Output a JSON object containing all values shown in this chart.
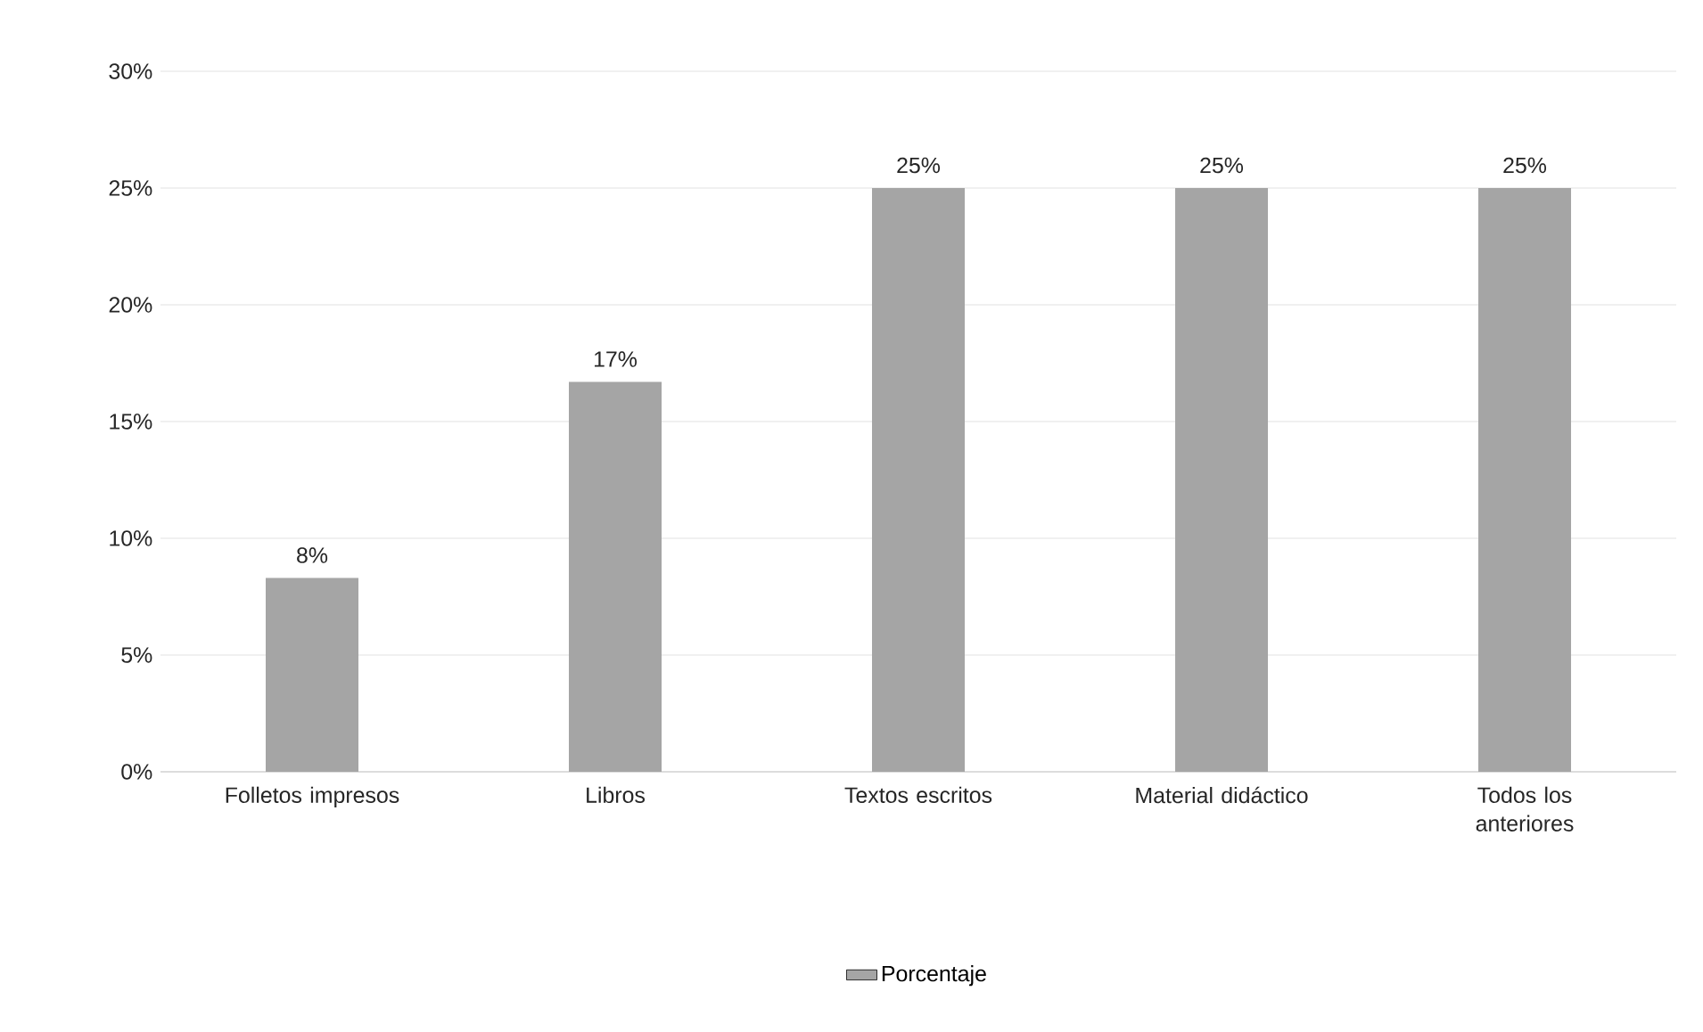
{
  "chart_data": {
    "type": "bar",
    "categories": [
      "Folletos impresos",
      "Libros",
      "Textos escritos",
      "Material didáctico",
      "Todos los anteriores"
    ],
    "series": [
      {
        "name": "Porcentaje",
        "color": "#a5a5a5",
        "values": [
          8.3,
          16.7,
          25,
          25,
          25
        ],
        "value_labels": [
          "8%",
          "17%",
          "25%",
          "25%",
          "25%"
        ]
      }
    ],
    "ylim": [
      0,
      30
    ],
    "yticks": [
      {
        "value": 0,
        "label": "0%"
      },
      {
        "value": 5,
        "label": "5%"
      },
      {
        "value": 10,
        "label": "10%"
      },
      {
        "value": 15,
        "label": "15%"
      },
      {
        "value": 20,
        "label": "20%"
      },
      {
        "value": 25,
        "label": "25%"
      },
      {
        "value": 30,
        "label": "30%"
      }
    ],
    "grid": "y",
    "legend": "bottom"
  }
}
